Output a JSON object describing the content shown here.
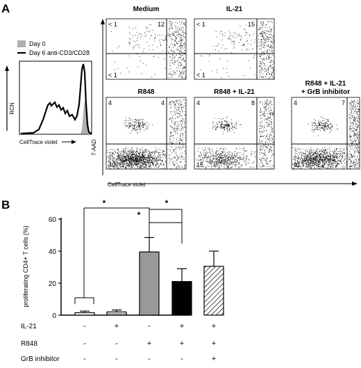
{
  "panelA": {
    "letter": "A",
    "histogram": {
      "legend": [
        {
          "label": "Day 0",
          "color": "#b0b0b0"
        },
        {
          "label": "Day 6 anti-CD3/CD28",
          "color": "#000000"
        }
      ],
      "ylabel": "RCN",
      "xlabel": "CellTrace violet"
    },
    "flow_ylabel": "7-AAD",
    "flow_xlabel": "CellTrace violet",
    "plots": [
      {
        "title": [
          "Medium"
        ],
        "q": {
          "ul": "< 1",
          "ur": "12",
          "ll": "< 1"
        }
      },
      {
        "title": [
          "IL-21"
        ],
        "q": {
          "ul": "< 1",
          "ur": "15",
          "ll": "< 1"
        }
      },
      {
        "title": [
          "R848"
        ],
        "q": {
          "ul": "4",
          "ur": "4",
          "ll": "40"
        }
      },
      {
        "title": [
          "R848 + IL-21"
        ],
        "q": {
          "ul": "4",
          "ur": "8",
          "ll": "15"
        }
      },
      {
        "title": [
          "R848 + IL-21",
          "+ GrB inhibitor"
        ],
        "q": {
          "ul": "4",
          "ur": "7",
          "ll": "31"
        }
      }
    ]
  },
  "panelB": {
    "letter": "B",
    "significance_marker": "*",
    "conditions": [
      {
        "name": "IL-21",
        "values": [
          "-",
          "+",
          "-",
          "+",
          "+"
        ]
      },
      {
        "name": "R848",
        "values": [
          "-",
          "-",
          "+",
          "+",
          "+"
        ]
      },
      {
        "name": "GrB inhibitor",
        "values": [
          "-",
          "-",
          "-",
          "-",
          "+"
        ]
      }
    ]
  },
  "chart_data": {
    "type": "bar",
    "ylabel": "proliferating CD4+ T cells (%)",
    "ylim": [
      0,
      60
    ],
    "yticks": [
      "0",
      "20",
      "40",
      "60"
    ],
    "values": [
      1.5,
      2,
      39.5,
      21,
      30.5
    ],
    "errors": [
      1,
      1.2,
      9,
      8,
      9.5
    ],
    "fills": [
      "white",
      "hlines",
      "#999999",
      "#000000",
      "diag"
    ]
  }
}
